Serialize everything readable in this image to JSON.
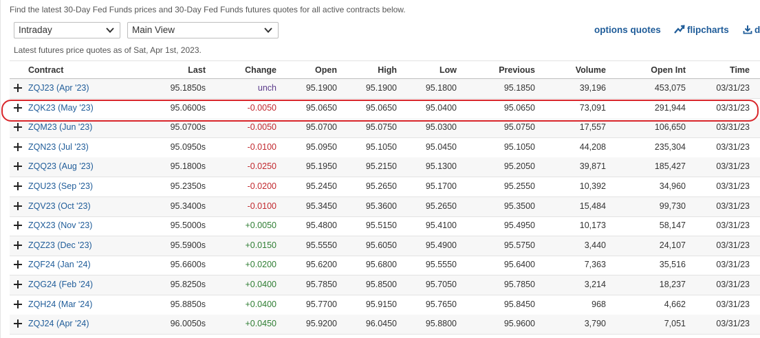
{
  "intro_text": "Find the latest 30-Day Fed Funds prices and 30-Day Fed Funds futures quotes for all active contracts below.",
  "period_select": {
    "value": "Intraday"
  },
  "view_select": {
    "value": "Main View"
  },
  "links": {
    "options_quotes": "options quotes",
    "flipcharts": "flipcharts",
    "download": "d"
  },
  "asof_text": "Latest futures price quotes as of Sat, Apr 1st, 2023.",
  "columns": [
    "Contract",
    "Last",
    "Change",
    "Open",
    "High",
    "Low",
    "Previous",
    "Volume",
    "Open Int",
    "Time"
  ],
  "rows": [
    {
      "contract": "ZQJ23 (Apr '23)",
      "last": "95.1850s",
      "change": "unch",
      "open": "95.1900",
      "high": "95.1900",
      "low": "95.1800",
      "previous": "95.1850",
      "volume": "39,196",
      "open_int": "453,075",
      "time": "03/31/23"
    },
    {
      "contract": "ZQK23 (May '23)",
      "last": "95.0600s",
      "change": "-0.0050",
      "open": "95.0650",
      "high": "95.0650",
      "low": "95.0400",
      "previous": "95.0650",
      "volume": "73,091",
      "open_int": "291,944",
      "time": "03/31/23"
    },
    {
      "contract": "ZQM23 (Jun '23)",
      "last": "95.0700s",
      "change": "-0.0050",
      "open": "95.0700",
      "high": "95.0750",
      "low": "95.0300",
      "previous": "95.0750",
      "volume": "17,557",
      "open_int": "106,650",
      "time": "03/31/23"
    },
    {
      "contract": "ZQN23 (Jul '23)",
      "last": "95.0950s",
      "change": "-0.0100",
      "open": "95.0950",
      "high": "95.1050",
      "low": "95.0450",
      "previous": "95.1050",
      "volume": "44,208",
      "open_int": "235,304",
      "time": "03/31/23"
    },
    {
      "contract": "ZQQ23 (Aug '23)",
      "last": "95.1800s",
      "change": "-0.0250",
      "open": "95.1950",
      "high": "95.2150",
      "low": "95.1300",
      "previous": "95.2050",
      "volume": "39,871",
      "open_int": "185,427",
      "time": "03/31/23"
    },
    {
      "contract": "ZQU23 (Sep '23)",
      "last": "95.2350s",
      "change": "-0.0200",
      "open": "95.2450",
      "high": "95.2650",
      "low": "95.1700",
      "previous": "95.2550",
      "volume": "10,392",
      "open_int": "34,960",
      "time": "03/31/23"
    },
    {
      "contract": "ZQV23 (Oct '23)",
      "last": "95.3400s",
      "change": "-0.0100",
      "open": "95.3450",
      "high": "95.3600",
      "low": "95.2650",
      "previous": "95.3500",
      "volume": "15,484",
      "open_int": "99,730",
      "time": "03/31/23"
    },
    {
      "contract": "ZQX23 (Nov '23)",
      "last": "95.5000s",
      "change": "+0.0050",
      "open": "95.4800",
      "high": "95.5150",
      "low": "95.4100",
      "previous": "95.4950",
      "volume": "10,173",
      "open_int": "58,147",
      "time": "03/31/23"
    },
    {
      "contract": "ZQZ23 (Dec '23)",
      "last": "95.5900s",
      "change": "+0.0150",
      "open": "95.5550",
      "high": "95.6050",
      "low": "95.4900",
      "previous": "95.5750",
      "volume": "3,440",
      "open_int": "24,107",
      "time": "03/31/23"
    },
    {
      "contract": "ZQF24 (Jan '24)",
      "last": "95.6600s",
      "change": "+0.0200",
      "open": "95.6200",
      "high": "95.6800",
      "low": "95.5550",
      "previous": "95.6400",
      "volume": "7,363",
      "open_int": "35,516",
      "time": "03/31/23"
    },
    {
      "contract": "ZQG24 (Feb '24)",
      "last": "95.8250s",
      "change": "+0.0400",
      "open": "95.7850",
      "high": "95.8500",
      "low": "95.7050",
      "previous": "95.7850",
      "volume": "3,214",
      "open_int": "18,237",
      "time": "03/31/23"
    },
    {
      "contract": "ZQH24 (Mar '24)",
      "last": "95.8850s",
      "change": "+0.0400",
      "open": "95.7700",
      "high": "95.9150",
      "low": "95.7650",
      "previous": "95.8450",
      "volume": "968",
      "open_int": "4,662",
      "time": "03/31/23"
    },
    {
      "contract": "ZQJ24 (Apr '24)",
      "last": "96.0050s",
      "change": "+0.0450",
      "open": "95.9200",
      "high": "96.0450",
      "low": "95.8800",
      "previous": "95.9600",
      "volume": "3,790",
      "open_int": "7,051",
      "time": "03/31/23"
    }
  ],
  "highlighted_row": 1,
  "colors": {
    "link": "#1f5c99",
    "negative": "#c1272d",
    "positive": "#2e7d32",
    "unchanged": "#5a3a8a",
    "highlight_outline": "#d9262b"
  },
  "icons": [
    "chevron-down-icon",
    "flipcharts-icon",
    "download-icon",
    "expand-plus-icon"
  ]
}
